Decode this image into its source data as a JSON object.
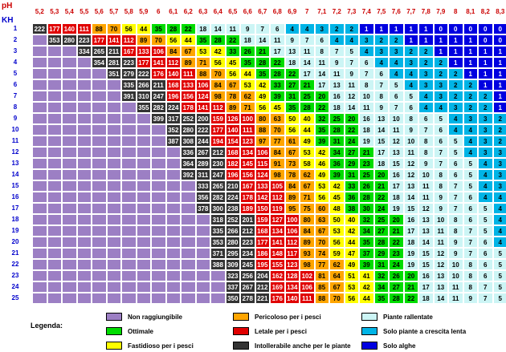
{
  "header": {
    "ph_label": "pH",
    "kh_label": "KH"
  },
  "ph_values": [
    "5,2",
    "5,3",
    "5,4",
    "5,5",
    "5,6",
    "5,7",
    "5,8",
    "5,9",
    "6",
    "6,1",
    "6,2",
    "6,3",
    "6,4",
    "6,5",
    "6,6",
    "6,7",
    "6,8",
    "6,9",
    "7",
    "7,1",
    "7,2",
    "7,3",
    "7,4",
    "7,5",
    "7,6",
    "7,7",
    "7,8",
    "7,9",
    "8",
    "8,1",
    "8,2",
    "8,3"
  ],
  "kh_values": [
    "1",
    "2",
    "3",
    "4",
    "5",
    "6",
    "7",
    "8",
    "9",
    "10",
    "11",
    "12",
    "13",
    "14",
    "15",
    "16",
    "17",
    "18",
    "19",
    "20",
    "21",
    "22",
    "23",
    "24",
    "25"
  ],
  "colors": {
    "nr": "#9c7fc4",
    "ot": "#00dc00",
    "fa": "#ffff00",
    "pe": "#ffa500",
    "le": "#e00000",
    "in": "#333333",
    "pr": "#ccf5f5",
    "sp": "#00b4e6",
    "sa": "#0000e0"
  },
  "table_rows": [
    [
      "222",
      "177",
      "140",
      "111",
      "88",
      "70",
      "56",
      "44",
      "35",
      "28",
      "22",
      "18",
      "14",
      "11",
      "9",
      "7",
      "6",
      "4",
      "4",
      "3",
      "2",
      "2",
      "1",
      "1",
      "1",
      "1",
      "1",
      "0",
      "0",
      "0",
      "0",
      "0"
    ],
    [
      "",
      "353",
      "280",
      "223",
      "177",
      "141",
      "112",
      "89",
      "70",
      "56",
      "44",
      "35",
      "28",
      "22",
      "18",
      "14",
      "11",
      "9",
      "7",
      "6",
      "4",
      "4",
      "3",
      "2",
      "2",
      "1",
      "1",
      "1",
      "1",
      "1",
      "0",
      "0"
    ],
    [
      "",
      "",
      "",
      "334",
      "265",
      "211",
      "167",
      "133",
      "106",
      "84",
      "67",
      "53",
      "42",
      "33",
      "26",
      "21",
      "17",
      "13",
      "11",
      "8",
      "7",
      "5",
      "4",
      "3",
      "3",
      "2",
      "2",
      "1",
      "1",
      "1",
      "1",
      "1"
    ],
    [
      "",
      "",
      "",
      "",
      "354",
      "281",
      "223",
      "177",
      "141",
      "112",
      "89",
      "71",
      "56",
      "45",
      "35",
      "28",
      "22",
      "18",
      "14",
      "11",
      "9",
      "7",
      "6",
      "4",
      "4",
      "3",
      "2",
      "2",
      "1",
      "1",
      "1",
      "1"
    ],
    [
      "",
      "",
      "",
      "",
      "",
      "351",
      "279",
      "222",
      "176",
      "140",
      "111",
      "88",
      "70",
      "56",
      "44",
      "35",
      "28",
      "22",
      "17",
      "14",
      "11",
      "9",
      "7",
      "6",
      "4",
      "4",
      "3",
      "2",
      "2",
      "1",
      "1",
      "1"
    ],
    [
      "",
      "",
      "",
      "",
      "",
      "",
      "335",
      "266",
      "211",
      "168",
      "133",
      "106",
      "84",
      "67",
      "53",
      "42",
      "33",
      "27",
      "21",
      "17",
      "13",
      "11",
      "8",
      "7",
      "5",
      "4",
      "3",
      "3",
      "2",
      "2",
      "1",
      "1"
    ],
    [
      "",
      "",
      "",
      "",
      "",
      "",
      "391",
      "310",
      "247",
      "196",
      "156",
      "124",
      "98",
      "78",
      "62",
      "49",
      "39",
      "31",
      "25",
      "20",
      "16",
      "12",
      "10",
      "8",
      "6",
      "5",
      "4",
      "3",
      "2",
      "2",
      "2",
      "1"
    ],
    [
      "",
      "",
      "",
      "",
      "",
      "",
      "",
      "355",
      "282",
      "224",
      "178",
      "141",
      "112",
      "89",
      "71",
      "56",
      "45",
      "35",
      "28",
      "22",
      "18",
      "14",
      "11",
      "9",
      "7",
      "6",
      "4",
      "4",
      "3",
      "2",
      "2",
      "1"
    ],
    [
      "",
      "",
      "",
      "",
      "",
      "",
      "",
      "",
      "399",
      "317",
      "252",
      "200",
      "159",
      "126",
      "100",
      "80",
      "63",
      "50",
      "40",
      "32",
      "25",
      "20",
      "16",
      "13",
      "10",
      "8",
      "6",
      "5",
      "4",
      "3",
      "3",
      "2"
    ],
    [
      "",
      "",
      "",
      "",
      "",
      "",
      "",
      "",
      "",
      "352",
      "280",
      "222",
      "177",
      "140",
      "111",
      "88",
      "70",
      "56",
      "44",
      "35",
      "28",
      "22",
      "18",
      "14",
      "11",
      "9",
      "7",
      "6",
      "4",
      "4",
      "3",
      "2"
    ],
    [
      "",
      "",
      "",
      "",
      "",
      "",
      "",
      "",
      "",
      "387",
      "308",
      "244",
      "194",
      "154",
      "123",
      "97",
      "77",
      "61",
      "49",
      "39",
      "31",
      "24",
      "19",
      "15",
      "12",
      "10",
      "8",
      "6",
      "5",
      "4",
      "3",
      "2"
    ],
    [
      "",
      "",
      "",
      "",
      "",
      "",
      "",
      "",
      "",
      "",
      "336",
      "267",
      "212",
      "168",
      "134",
      "106",
      "84",
      "67",
      "53",
      "42",
      "34",
      "27",
      "21",
      "17",
      "13",
      "11",
      "8",
      "7",
      "5",
      "4",
      "3",
      "3"
    ],
    [
      "",
      "",
      "",
      "",
      "",
      "",
      "",
      "",
      "",
      "",
      "364",
      "289",
      "230",
      "182",
      "145",
      "115",
      "91",
      "73",
      "58",
      "46",
      "36",
      "29",
      "23",
      "18",
      "15",
      "12",
      "9",
      "7",
      "6",
      "5",
      "4",
      "3"
    ],
    [
      "",
      "",
      "",
      "",
      "",
      "",
      "",
      "",
      "",
      "",
      "392",
      "311",
      "247",
      "196",
      "156",
      "124",
      "98",
      "78",
      "62",
      "49",
      "39",
      "31",
      "25",
      "20",
      "16",
      "12",
      "10",
      "8",
      "6",
      "5",
      "4",
      "3"
    ],
    [
      "",
      "",
      "",
      "",
      "",
      "",
      "",
      "",
      "",
      "",
      "",
      "333",
      "265",
      "210",
      "167",
      "133",
      "105",
      "84",
      "67",
      "53",
      "42",
      "33",
      "26",
      "21",
      "17",
      "13",
      "11",
      "8",
      "7",
      "5",
      "4",
      "3"
    ],
    [
      "",
      "",
      "",
      "",
      "",
      "",
      "",
      "",
      "",
      "",
      "",
      "356",
      "282",
      "224",
      "178",
      "142",
      "112",
      "89",
      "71",
      "56",
      "45",
      "36",
      "28",
      "22",
      "18",
      "14",
      "11",
      "9",
      "7",
      "6",
      "4",
      "4"
    ],
    [
      "",
      "",
      "",
      "",
      "",
      "",
      "",
      "",
      "",
      "",
      "",
      "378",
      "300",
      "238",
      "189",
      "150",
      "119",
      "95",
      "75",
      "60",
      "48",
      "38",
      "30",
      "24",
      "19",
      "15",
      "12",
      "9",
      "7",
      "6",
      "5",
      "4"
    ],
    [
      "",
      "",
      "",
      "",
      "",
      "",
      "",
      "",
      "",
      "",
      "",
      "",
      "318",
      "252",
      "201",
      "159",
      "127",
      "100",
      "80",
      "63",
      "50",
      "40",
      "32",
      "25",
      "20",
      "16",
      "13",
      "10",
      "8",
      "6",
      "5",
      "4"
    ],
    [
      "",
      "",
      "",
      "",
      "",
      "",
      "",
      "",
      "",
      "",
      "",
      "",
      "335",
      "266",
      "212",
      "168",
      "134",
      "106",
      "84",
      "67",
      "53",
      "42",
      "34",
      "27",
      "21",
      "17",
      "13",
      "11",
      "8",
      "7",
      "5",
      "4"
    ],
    [
      "",
      "",
      "",
      "",
      "",
      "",
      "",
      "",
      "",
      "",
      "",
      "",
      "353",
      "280",
      "223",
      "177",
      "141",
      "112",
      "89",
      "70",
      "56",
      "44",
      "35",
      "28",
      "22",
      "18",
      "14",
      "11",
      "9",
      "7",
      "6",
      "4"
    ],
    [
      "",
      "",
      "",
      "",
      "",
      "",
      "",
      "",
      "",
      "",
      "",
      "",
      "371",
      "295",
      "234",
      "186",
      "148",
      "117",
      "93",
      "74",
      "59",
      "47",
      "37",
      "29",
      "23",
      "19",
      "15",
      "12",
      "9",
      "7",
      "6",
      "5"
    ],
    [
      "",
      "",
      "",
      "",
      "",
      "",
      "",
      "",
      "",
      "",
      "",
      "",
      "388",
      "309",
      "245",
      "195",
      "155",
      "123",
      "98",
      "77",
      "62",
      "49",
      "39",
      "31",
      "24",
      "19",
      "15",
      "12",
      "10",
      "8",
      "6",
      "5"
    ],
    [
      "",
      "",
      "",
      "",
      "",
      "",
      "",
      "",
      "",
      "",
      "",
      "",
      "",
      "323",
      "256",
      "204",
      "162",
      "128",
      "102",
      "81",
      "64",
      "51",
      "41",
      "32",
      "26",
      "20",
      "16",
      "13",
      "10",
      "8",
      "6",
      "5"
    ],
    [
      "",
      "",
      "",
      "",
      "",
      "",
      "",
      "",
      "",
      "",
      "",
      "",
      "",
      "337",
      "267",
      "212",
      "169",
      "134",
      "106",
      "85",
      "67",
      "53",
      "42",
      "34",
      "27",
      "21",
      "17",
      "13",
      "11",
      "8",
      "7",
      "5"
    ],
    [
      "",
      "",
      "",
      "",
      "",
      "",
      "",
      "",
      "",
      "",
      "",
      "",
      "",
      "350",
      "278",
      "221",
      "176",
      "140",
      "111",
      "88",
      "70",
      "56",
      "44",
      "35",
      "28",
      "22",
      "18",
      "14",
      "11",
      "9",
      "7",
      "5"
    ]
  ],
  "legend": {
    "title": "Legenda:",
    "items": [
      {
        "key": "nr",
        "label": "Non raggiungibile"
      },
      {
        "key": "ot",
        "label": "Ottimale"
      },
      {
        "key": "fa",
        "label": "Fastidioso per i pesci"
      },
      {
        "key": "pe",
        "label": "Pericoloso per i pesci"
      },
      {
        "key": "le",
        "label": "Letale per i pesci"
      },
      {
        "key": "in",
        "label": "Intollerabile anche per le piante"
      },
      {
        "key": "pr",
        "label": "Piante rallentate"
      },
      {
        "key": "sp",
        "label": "Solo piante a crescita lenta"
      },
      {
        "key": "sa",
        "label": "Solo alghe"
      }
    ]
  }
}
